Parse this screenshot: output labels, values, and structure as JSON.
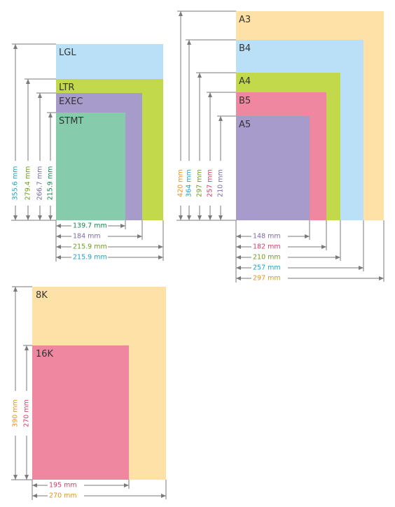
{
  "colors": {
    "line": "#7a7a7a",
    "legal_blue": "#b9e0f6",
    "letter_green": "#c2d94c",
    "exec_purple": "#a69bcb",
    "stmt_green": "#86cbab",
    "a3_orange": "#fde1a6",
    "b5_pink": "#ef87a1",
    "text_dark": "#333333"
  },
  "groups": [
    {
      "id": "us-sizes",
      "papers": [
        {
          "id": "lgl",
          "label": "LGL",
          "color": "#b9e0f6"
        },
        {
          "id": "ltr",
          "label": "LTR",
          "color": "#c2d94c"
        },
        {
          "id": "exec",
          "label": "EXEC",
          "color": "#a69bcb"
        },
        {
          "id": "stmt",
          "label": "STMT",
          "color": "#86cbab"
        }
      ],
      "heights": [
        {
          "text": "355.6 mm",
          "color": "#1aa3c2"
        },
        {
          "text": "279.4 mm",
          "color": "#6c9c1a"
        },
        {
          "text": "266.7 mm",
          "color": "#7b6aa8"
        },
        {
          "text": "215.9 mm",
          "color": "#13854e"
        }
      ],
      "widths": [
        {
          "text": "139.7 mm",
          "color": "#13854e"
        },
        {
          "text": "184 mm",
          "color": "#7b6aa8"
        },
        {
          "text": "215.9 mm",
          "color": "#6c9c1a"
        },
        {
          "text": "215.9 mm",
          "color": "#1aa3c2"
        }
      ]
    },
    {
      "id": "iso-sizes",
      "papers": [
        {
          "id": "a3",
          "label": "A3",
          "color": "#fde1a6"
        },
        {
          "id": "b4",
          "label": "B4",
          "color": "#b9e0f6"
        },
        {
          "id": "a4",
          "label": "A4",
          "color": "#c2d94c"
        },
        {
          "id": "b5",
          "label": "B5",
          "color": "#ef87a1"
        },
        {
          "id": "a5",
          "label": "A5",
          "color": "#a69bcb"
        }
      ],
      "heights": [
        {
          "text": "420 mm",
          "color": "#e8931c"
        },
        {
          "text": "364 mm",
          "color": "#1aa3c2"
        },
        {
          "text": "297 mm",
          "color": "#6c9c1a"
        },
        {
          "text": "257 mm",
          "color": "#d63c63"
        },
        {
          "text": "210 mm",
          "color": "#7b6aa8"
        }
      ],
      "widths": [
        {
          "text": "148 mm",
          "color": "#7b6aa8"
        },
        {
          "text": "182 mm",
          "color": "#d63c63"
        },
        {
          "text": "210 mm",
          "color": "#6c9c1a"
        },
        {
          "text": "257 mm",
          "color": "#1aa3c2"
        },
        {
          "text": "297 mm",
          "color": "#e8931c"
        }
      ]
    },
    {
      "id": "k-sizes",
      "papers": [
        {
          "id": "8k",
          "label": "8K",
          "color": "#fde1a6"
        },
        {
          "id": "16k",
          "label": "16K",
          "color": "#ef87a1"
        }
      ],
      "heights": [
        {
          "text": "390 mm",
          "color": "#e8931c"
        },
        {
          "text": "270 mm",
          "color": "#d63c63"
        }
      ],
      "widths": [
        {
          "text": "195 mm",
          "color": "#d63c63"
        },
        {
          "text": "270 mm",
          "color": "#e8931c"
        }
      ]
    }
  ]
}
